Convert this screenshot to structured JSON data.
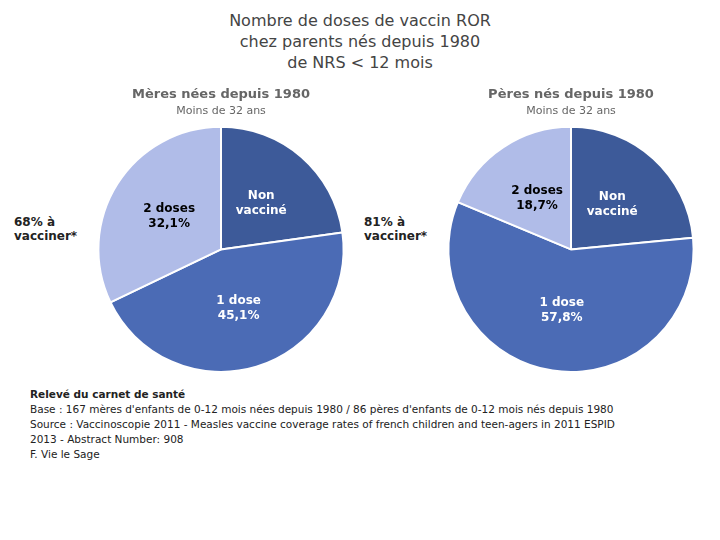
{
  "title": [
    "Nombre de doses de vaccin ROR",
    "chez parents nés depuis 1980",
    "de NRS < 12 mois"
  ],
  "annotations": [
    "Relevé du carnet de santé",
    "Base : 167 mères d'enfants de 0-12 mois nées depuis 1980 / 86 pères d'enfants de 0-12 mois nés depuis 1980",
    "Source : Vaccinoscopie 2011 -  Measles vaccine coverage rates of french children and teen-agers in 2011 ESPID",
    "2013 - Abstract Number: 908",
    "F. Vie le Sage"
  ],
  "chart_data": [
    {
      "type": "pie",
      "title": "Mères nées depuis 1980",
      "subtitle": "Moins de 32 ans",
      "annotations": [
        "68% à\nvacciner*"
      ],
      "categories": [
        "Non\nvacciné",
        "1 dose",
        "2 doses"
      ],
      "values": [
        22.8,
        45.1,
        32.1
      ],
      "value_labels": [
        null,
        "45,1%",
        "32,1%"
      ],
      "colors": [
        "#3d5a99",
        "#4b6bb5",
        "#b0bce8"
      ],
      "data_labels": true,
      "legend": false
    },
    {
      "type": "pie",
      "title": "Pères nés depuis 1980",
      "subtitle": "Moins de 32 ans",
      "annotations": [
        "81% à\nvacciner*"
      ],
      "categories": [
        "Non\nvacciné",
        "1 dose",
        "2 doses"
      ],
      "values": [
        23.5,
        57.8,
        18.7
      ],
      "value_labels": [
        null,
        "57,8%",
        "18,7%"
      ],
      "colors": [
        "#3d5a99",
        "#4b6bb5",
        "#b0bce8"
      ],
      "data_labels": true,
      "legend": false
    }
  ]
}
